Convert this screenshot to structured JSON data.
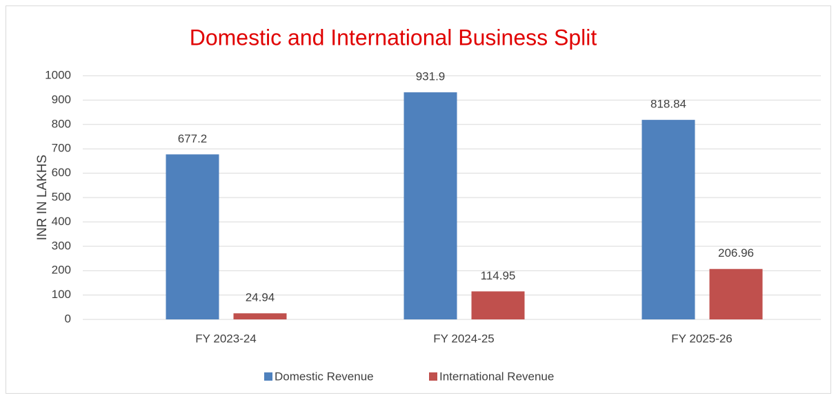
{
  "chart_data": {
    "type": "bar",
    "title": "Domestic and International Business Split",
    "y_label": "INR IN LAKHS",
    "categories": [
      "FY 2023-24",
      "FY 2024-25",
      "FY 2025-26"
    ],
    "series": [
      {
        "name": "Domestic Revenue",
        "color": "#4f81bd",
        "values": [
          677.2,
          931.9,
          818.84
        ]
      },
      {
        "name": "International Revenue",
        "color": "#c0504d",
        "values": [
          24.94,
          114.95,
          206.96
        ]
      }
    ],
    "ylim": [
      0,
      1000
    ],
    "yticks": [
      0,
      100,
      200,
      300,
      400,
      500,
      600,
      700,
      800,
      900,
      1000
    ],
    "grid": true,
    "legend": "bottom"
  }
}
